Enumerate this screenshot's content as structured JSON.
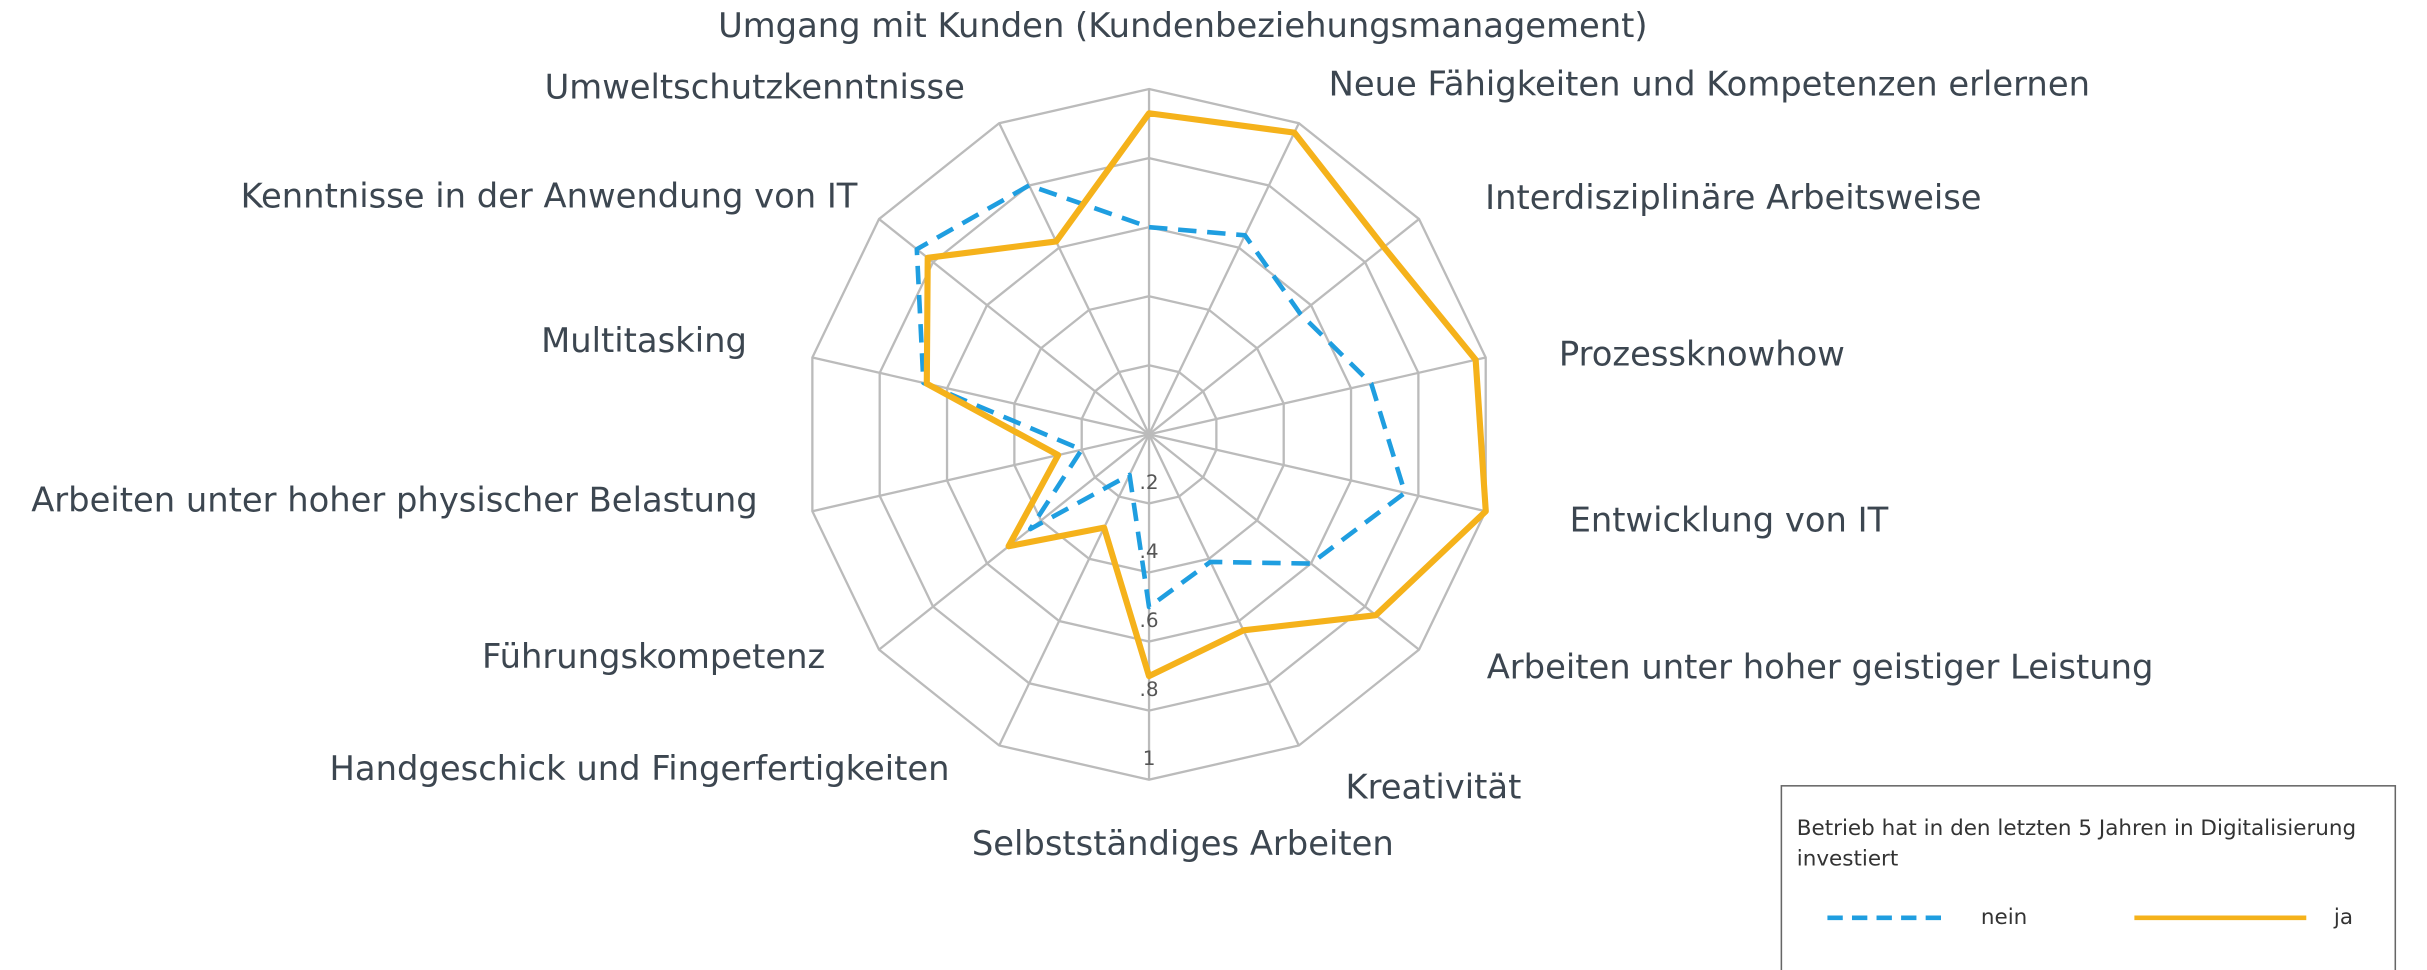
{
  "chart_data": {
    "type": "radar",
    "categories": [
      "Umgang mit Kunden (Kundenbeziehungsmanagement)",
      "Neue Fähigkeiten und Kompetenzen erlernen",
      "Interdisziplinäre Arbeitsweise",
      "Prozessknowhow",
      "Entwicklung von IT",
      "Arbeiten unter hoher geistiger Leistung",
      "Kreativität",
      "Selbstständiges Arbeiten",
      "Handgeschick und Fingerfertigkeiten",
      "Führungskompetenz",
      "Arbeiten unter hoher physischer Belastung",
      "Multitasking",
      "Kenntnisse in der Anwendung von IT",
      "Umweltschutzkenntnisse"
    ],
    "series": [
      {
        "name": "nein",
        "color": "#1f9ee0",
        "dash": true,
        "values": [
          0.6,
          0.64,
          0.56,
          0.66,
          0.76,
          0.6,
          0.41,
          0.5,
          0.13,
          0.44,
          0.2,
          0.67,
          0.86,
          0.8
        ]
      },
      {
        "name": "ja",
        "color": "#f5b21b",
        "dash": false,
        "values": [
          0.93,
          0.97,
          0.87,
          0.97,
          1.0,
          0.84,
          0.63,
          0.7,
          0.3,
          0.52,
          0.27,
          0.66,
          0.82,
          0.62
        ]
      }
    ],
    "rlim": [
      0,
      1
    ],
    "rticks": [
      {
        "value": 0.2,
        "label": ".2"
      },
      {
        "value": 0.4,
        "label": ".4"
      },
      {
        "value": 0.6,
        "label": ".6"
      },
      {
        "value": 0.8,
        "label": ".8"
      },
      1
    ],
    "legend_title": "Betrieb hat in den letzten 5 Jahren in Digitalisierung investiert",
    "legend": "lower right",
    "grid": true
  }
}
